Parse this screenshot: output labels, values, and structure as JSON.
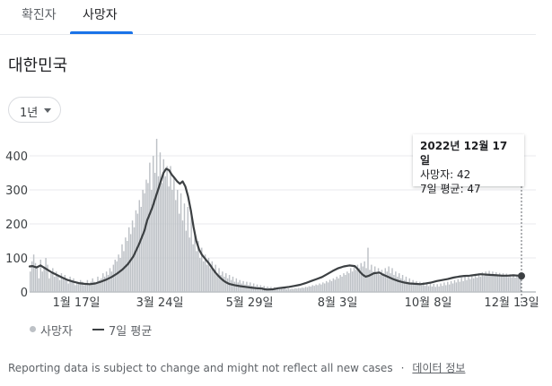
{
  "tabs": [
    {
      "label": "확진자",
      "active": false
    },
    {
      "label": "사망자",
      "active": true
    }
  ],
  "region_title": "대한민국",
  "range_selector": {
    "selected": "1년"
  },
  "tooltip": {
    "date": "2022년 12월 17일",
    "deaths": "사망자: 42",
    "avg": "7일 평균: 47"
  },
  "legend": {
    "bars": "사망자",
    "line": "7일 평균"
  },
  "footer": {
    "note": "Reporting data is subject to change and might not reflect all new cases",
    "separator": "·",
    "link": "데이터 정보"
  },
  "colors": {
    "bars": "#bdc1c6",
    "line": "#3c4043",
    "grid": "#e8eaed",
    "accent": "#1a73e8"
  },
  "chart_data": {
    "type": "bar",
    "x_ticks": [
      "1월 17일",
      "3월 24일",
      "5월 29일",
      "8월 3일",
      "10월 8일",
      "12월 13일"
    ],
    "y_ticks": [
      0,
      100,
      200,
      300,
      400
    ],
    "ylim": [
      0,
      450
    ],
    "grid": true,
    "legend_placement": "bottom-left",
    "series": [
      {
        "name": "사망자",
        "values": [
          60,
          90,
          110,
          85,
          70,
          40,
          95,
          60,
          75,
          100,
          80,
          40,
          55,
          70,
          45,
          60,
          50,
          35,
          55,
          40,
          50,
          35,
          25,
          45,
          30,
          40,
          20,
          30,
          25,
          35,
          30,
          20,
          25,
          35,
          25,
          30,
          40,
          30,
          25,
          45,
          35,
          40,
          55,
          45,
          60,
          50,
          70,
          60,
          80,
          95,
          90,
          110,
          100,
          140,
          120,
          160,
          150,
          190,
          170,
          210,
          190,
          240,
          230,
          270,
          250,
          300,
          290,
          330,
          320,
          380,
          300,
          400,
          350,
          450,
          340,
          410,
          320,
          390,
          340,
          370,
          310,
          370,
          300,
          340,
          270,
          300,
          230,
          290,
          210,
          260,
          180,
          250,
          160,
          240,
          140,
          170,
          120,
          150,
          100,
          130,
          90,
          110,
          80,
          100,
          70,
          90,
          60,
          80,
          55,
          70,
          50,
          60,
          45,
          55,
          40,
          50,
          35,
          45,
          30,
          40,
          28,
          35,
          25,
          32,
          22,
          30,
          20,
          28,
          18,
          25,
          16,
          22,
          15,
          20,
          14,
          18,
          12,
          16,
          12,
          15,
          10,
          14,
          10,
          13,
          9,
          12,
          9,
          11,
          8,
          10,
          8,
          10,
          9,
          11,
          10,
          12,
          11,
          13,
          12,
          15,
          14,
          17,
          16,
          20,
          18,
          22,
          20,
          25,
          22,
          28,
          25,
          32,
          28,
          36,
          32,
          40,
          36,
          45,
          40,
          50,
          45,
          55,
          50,
          60,
          55,
          70,
          60,
          75,
          65,
          80,
          70,
          85,
          75,
          90,
          70,
          130,
          65,
          80,
          60,
          75,
          55,
          70,
          50,
          65,
          55,
          70,
          60,
          75,
          55,
          70,
          50,
          60,
          45,
          55,
          40,
          50,
          35,
          45,
          30,
          40,
          28,
          35,
          25,
          32,
          22,
          30,
          20,
          28,
          18,
          26,
          17,
          25,
          16,
          24,
          15,
          23,
          16,
          25,
          18,
          28,
          20,
          30,
          22,
          32,
          25,
          35,
          28,
          38,
          30,
          42,
          32,
          45,
          35,
          48,
          38,
          50,
          40,
          52,
          42,
          55,
          45,
          58,
          47,
          60,
          48,
          62,
          50,
          60,
          48,
          58,
          47,
          56,
          46,
          55,
          45,
          54,
          44,
          52,
          43,
          50,
          42,
          48,
          42,
          50
        ]
      },
      {
        "name": "7일 평균",
        "points": [
          [
            0,
            75
          ],
          [
            2,
            76
          ],
          [
            5,
            72
          ],
          [
            8,
            78
          ],
          [
            12,
            68
          ],
          [
            16,
            58
          ],
          [
            20,
            50
          ],
          [
            24,
            42
          ],
          [
            28,
            35
          ],
          [
            32,
            30
          ],
          [
            36,
            26
          ],
          [
            40,
            24
          ],
          [
            44,
            23
          ],
          [
            48,
            25
          ],
          [
            52,
            30
          ],
          [
            56,
            36
          ],
          [
            60,
            44
          ],
          [
            64,
            54
          ],
          [
            68,
            66
          ],
          [
            72,
            82
          ],
          [
            76,
            105
          ],
          [
            80,
            140
          ],
          [
            84,
            180
          ],
          [
            86,
            210
          ],
          [
            88,
            230
          ],
          [
            90,
            250
          ],
          [
            92,
            275
          ],
          [
            94,
            300
          ],
          [
            96,
            325
          ],
          [
            98,
            350
          ],
          [
            100,
            362
          ],
          [
            102,
            358
          ],
          [
            104,
            345
          ],
          [
            106,
            335
          ],
          [
            108,
            325
          ],
          [
            110,
            318
          ],
          [
            112,
            325
          ],
          [
            114,
            310
          ],
          [
            116,
            280
          ],
          [
            118,
            240
          ],
          [
            120,
            190
          ],
          [
            122,
            150
          ],
          [
            124,
            125
          ],
          [
            126,
            110
          ],
          [
            128,
            100
          ],
          [
            130,
            90
          ],
          [
            132,
            80
          ],
          [
            134,
            68
          ],
          [
            136,
            57
          ],
          [
            138,
            48
          ],
          [
            140,
            40
          ],
          [
            142,
            33
          ],
          [
            144,
            28
          ],
          [
            146,
            24
          ],
          [
            150,
            20
          ],
          [
            154,
            17
          ],
          [
            158,
            15
          ],
          [
            162,
            13
          ],
          [
            166,
            11
          ],
          [
            170,
            10
          ],
          [
            172,
            8
          ],
          [
            174,
            7
          ],
          [
            178,
            8
          ],
          [
            182,
            11
          ],
          [
            186,
            13
          ],
          [
            190,
            15
          ],
          [
            194,
            18
          ],
          [
            198,
            21
          ],
          [
            202,
            26
          ],
          [
            206,
            32
          ],
          [
            210,
            38
          ],
          [
            214,
            44
          ],
          [
            218,
            53
          ],
          [
            222,
            62
          ],
          [
            226,
            70
          ],
          [
            230,
            75
          ],
          [
            234,
            78
          ],
          [
            238,
            76
          ],
          [
            240,
            68
          ],
          [
            242,
            58
          ],
          [
            244,
            50
          ],
          [
            246,
            45
          ],
          [
            248,
            47
          ],
          [
            252,
            55
          ],
          [
            256,
            57
          ],
          [
            258,
            52
          ],
          [
            262,
            45
          ],
          [
            266,
            38
          ],
          [
            270,
            32
          ],
          [
            274,
            28
          ],
          [
            278,
            25
          ],
          [
            282,
            24
          ],
          [
            286,
            23
          ],
          [
            290,
            25
          ],
          [
            294,
            28
          ],
          [
            298,
            32
          ],
          [
            302,
            35
          ],
          [
            306,
            38
          ],
          [
            310,
            42
          ],
          [
            314,
            45
          ],
          [
            318,
            47
          ],
          [
            322,
            48
          ],
          [
            326,
            50
          ],
          [
            330,
            52
          ],
          [
            334,
            51
          ],
          [
            338,
            50
          ],
          [
            342,
            49
          ],
          [
            346,
            48
          ],
          [
            350,
            48
          ],
          [
            354,
            49
          ],
          [
            358,
            48
          ],
          [
            360,
            47
          ]
        ]
      }
    ]
  }
}
